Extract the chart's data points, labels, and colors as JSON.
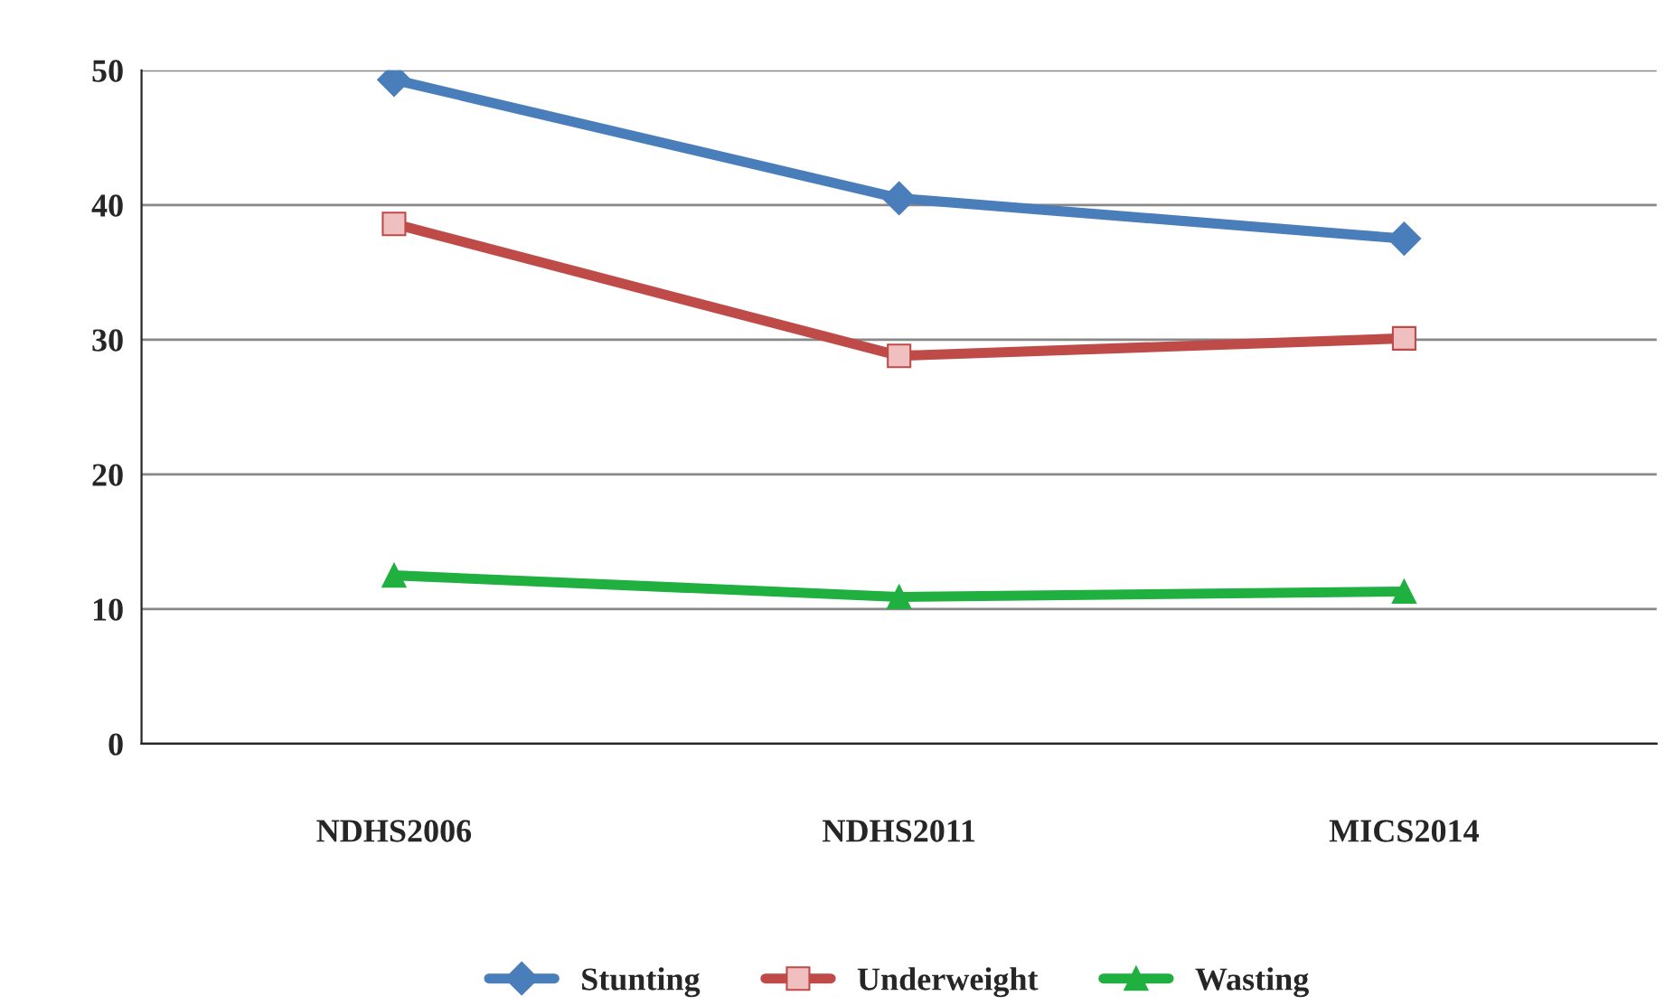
{
  "chart_data": {
    "type": "line",
    "categories": [
      "NDHS2006",
      "NDHS2011",
      "MICS2014"
    ],
    "series": [
      {
        "name": "Stunting",
        "color": "#4a7ebb",
        "marker": "diamond",
        "values": [
          49.3,
          40.5,
          37.5
        ]
      },
      {
        "name": "Underweight",
        "color": "#be4b48",
        "marker": "square",
        "values": [
          38.6,
          28.8,
          30.1
        ]
      },
      {
        "name": "Wasting",
        "color": "#1fb040",
        "marker": "triangle",
        "values": [
          12.5,
          10.9,
          11.3
        ]
      }
    ],
    "ylim": [
      0,
      50
    ],
    "yticks": [
      0,
      10,
      20,
      30,
      40,
      50
    ],
    "grid": "y",
    "legend": "bottom"
  }
}
